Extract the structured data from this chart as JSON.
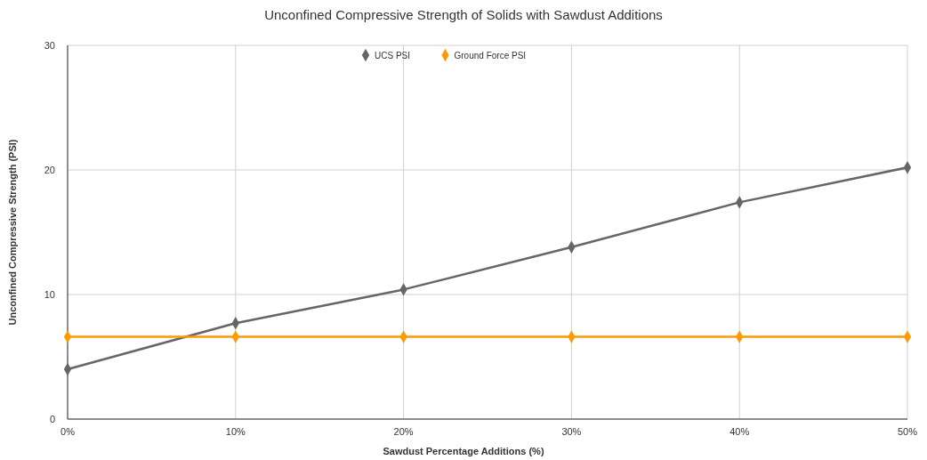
{
  "chart_data": {
    "type": "line",
    "title": "Unconfined Compressive Strength of Solids with Sawdust Additions",
    "xlabel": "Sawdust Percentage Additions (%)",
    "ylabel": "Unconfined Compressive Strength (PSI)",
    "x": [
      0,
      10,
      20,
      30,
      40,
      50
    ],
    "series": [
      {
        "name": "UCS PSI",
        "color": "#666666",
        "values": [
          4.0,
          7.7,
          10.4,
          13.8,
          17.4,
          20.2
        ]
      },
      {
        "name": "Ground Force PSI",
        "color": "#ff9900",
        "values": [
          6.6,
          6.6,
          6.6,
          6.6,
          6.6,
          6.6
        ]
      }
    ],
    "xlim": [
      0,
      50
    ],
    "xticks": [
      {
        "value": 0,
        "label": "0%"
      },
      {
        "value": 10,
        "label": "10%"
      },
      {
        "value": 20,
        "label": "20%"
      },
      {
        "value": 30,
        "label": "30%"
      },
      {
        "value": 40,
        "label": "40%"
      },
      {
        "value": 50,
        "label": "50%"
      }
    ],
    "ylim": [
      0,
      30
    ],
    "yticks": [
      0,
      10,
      20,
      30
    ],
    "grid": true,
    "legend": "top",
    "marker": "diamond",
    "line_style": "solid"
  }
}
